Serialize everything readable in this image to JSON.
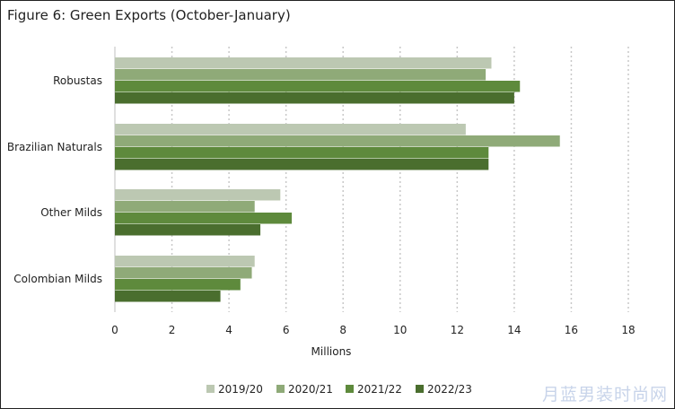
{
  "title": "Figure 6: Green Exports (October-January)",
  "watermark": "月蓝男装时尚网",
  "chart_data": {
    "type": "bar",
    "orientation": "horizontal",
    "title": "Figure 6: Green Exports (October-January)",
    "xlabel": "Millions",
    "ylabel": "",
    "xlim": [
      0,
      18
    ],
    "xticks": [
      0,
      2,
      4,
      6,
      8,
      10,
      12,
      14,
      16,
      18
    ],
    "grid": "vertical dotted",
    "legend_position": "bottom",
    "categories": [
      "Robustas",
      "Brazilian Naturals",
      "Other Milds",
      "Colombian Milds"
    ],
    "series": [
      {
        "name": "2019/20",
        "color": "#bcc8b2",
        "values": [
          13.2,
          12.3,
          5.8,
          4.9
        ]
      },
      {
        "name": "2020/21",
        "color": "#8faa78",
        "values": [
          13.0,
          15.6,
          4.9,
          4.8
        ]
      },
      {
        "name": "2021/22",
        "color": "#5e8a3c",
        "values": [
          14.2,
          13.1,
          6.2,
          4.4
        ]
      },
      {
        "name": "2022/23",
        "color": "#4a6e2e",
        "values": [
          14.0,
          13.1,
          5.1,
          3.7
        ]
      }
    ]
  }
}
